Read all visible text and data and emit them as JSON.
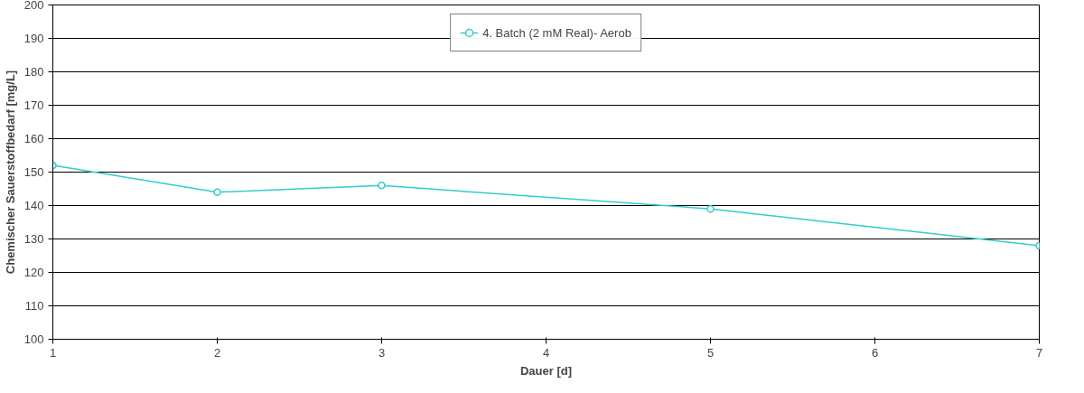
{
  "chart_data": {
    "type": "line",
    "xlabel": "Dauer [d]",
    "ylabel": "Chemischer Sauerstoffbedarf [mg/L]",
    "x": [
      1,
      2,
      3,
      5,
      7
    ],
    "series": [
      {
        "name": "4. Batch (2 mM Real)- Aerob",
        "color": "#33cccc",
        "values": [
          152,
          144,
          146,
          139,
          128
        ]
      }
    ],
    "xlim": [
      1,
      7
    ],
    "xticks": [
      1,
      2,
      3,
      4,
      5,
      6,
      7
    ],
    "ylim": [
      100,
      200
    ],
    "yticks": [
      100,
      110,
      120,
      130,
      140,
      150,
      160,
      170,
      180,
      190,
      200
    ],
    "grid": "y",
    "legend": "top",
    "marker": "circle",
    "line_style": "solid"
  }
}
